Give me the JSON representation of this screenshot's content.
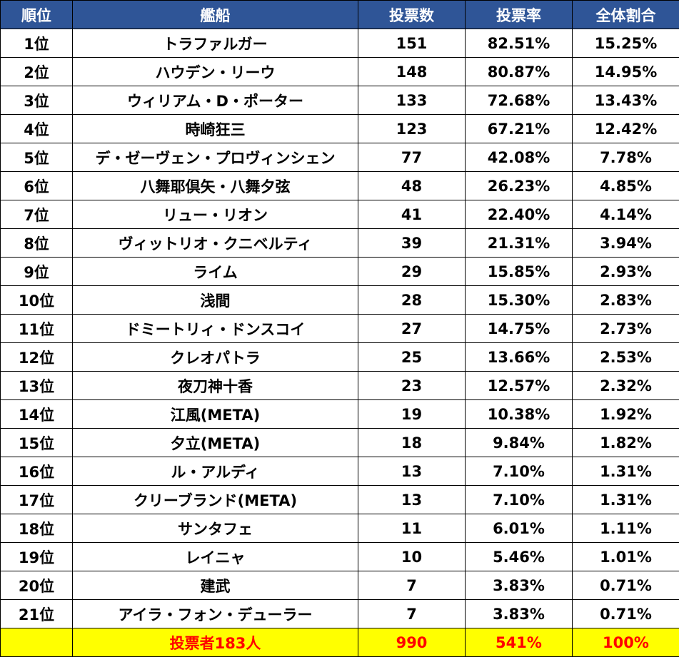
{
  "table": {
    "headers": [
      "順位",
      "艦船",
      "投票数",
      "投票率",
      "全体割合"
    ],
    "rows": [
      {
        "rank": "1位",
        "name": "トラファルガー",
        "votes": "151",
        "rate": "82.51%",
        "share": "15.25%"
      },
      {
        "rank": "2位",
        "name": "ハウデン・リーウ",
        "votes": "148",
        "rate": "80.87%",
        "share": "14.95%"
      },
      {
        "rank": "3位",
        "name": "ウィリアム・D・ポーター",
        "votes": "133",
        "rate": "72.68%",
        "share": "13.43%"
      },
      {
        "rank": "4位",
        "name": "時崎狂三",
        "votes": "123",
        "rate": "67.21%",
        "share": "12.42%"
      },
      {
        "rank": "5位",
        "name": "デ・ゼーヴェン・プロヴィンシェン",
        "votes": "77",
        "rate": "42.08%",
        "share": "7.78%"
      },
      {
        "rank": "6位",
        "name": "八舞耶倶矢・八舞夕弦",
        "votes": "48",
        "rate": "26.23%",
        "share": "4.85%"
      },
      {
        "rank": "7位",
        "name": "リュー・リオン",
        "votes": "41",
        "rate": "22.40%",
        "share": "4.14%"
      },
      {
        "rank": "8位",
        "name": "ヴィットリオ・クニベルティ",
        "votes": "39",
        "rate": "21.31%",
        "share": "3.94%"
      },
      {
        "rank": "9位",
        "name": "ライム",
        "votes": "29",
        "rate": "15.85%",
        "share": "2.93%"
      },
      {
        "rank": "10位",
        "name": "浅間",
        "votes": "28",
        "rate": "15.30%",
        "share": "2.83%"
      },
      {
        "rank": "11位",
        "name": "ドミートリィ・ドンスコイ",
        "votes": "27",
        "rate": "14.75%",
        "share": "2.73%"
      },
      {
        "rank": "12位",
        "name": "クレオパトラ",
        "votes": "25",
        "rate": "13.66%",
        "share": "2.53%"
      },
      {
        "rank": "13位",
        "name": "夜刀神十香",
        "votes": "23",
        "rate": "12.57%",
        "share": "2.32%"
      },
      {
        "rank": "14位",
        "name": "江風(META)",
        "votes": "19",
        "rate": "10.38%",
        "share": "1.92%"
      },
      {
        "rank": "15位",
        "name": "夕立(META)",
        "votes": "18",
        "rate": "9.84%",
        "share": "1.82%"
      },
      {
        "rank": "16位",
        "name": "ル・アルディ",
        "votes": "13",
        "rate": "7.10%",
        "share": "1.31%"
      },
      {
        "rank": "17位",
        "name": "クリーブランド(META)",
        "votes": "13",
        "rate": "7.10%",
        "share": "1.31%"
      },
      {
        "rank": "18位",
        "name": "サンタフェ",
        "votes": "11",
        "rate": "6.01%",
        "share": "1.11%"
      },
      {
        "rank": "19位",
        "name": "レイニャ",
        "votes": "10",
        "rate": "5.46%",
        "share": "1.01%"
      },
      {
        "rank": "20位",
        "name": "建武",
        "votes": "7",
        "rate": "3.83%",
        "share": "0.71%"
      },
      {
        "rank": "21位",
        "name": "アイラ・フォン・デューラー",
        "votes": "7",
        "rate": "3.83%",
        "share": "0.71%"
      }
    ],
    "total": {
      "rank": "",
      "name": "投票者183人",
      "votes": "990",
      "rate": "541%",
      "share": "100%"
    }
  },
  "colors": {
    "header_bg": "#2f5597",
    "header_text": "#ffffff",
    "total_bg": "#ffff00",
    "total_text": "#ff0000"
  }
}
